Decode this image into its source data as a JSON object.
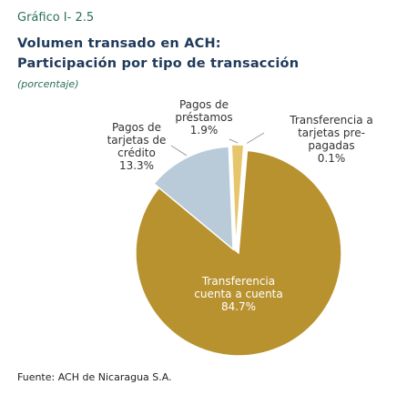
{
  "figure_label": "Gráfico I- 2.5",
  "source": "Fuente: ACH de Nicaragua S.A.",
  "chart_data": {
    "type": "pie",
    "title_line1": "Volumen transado en ACH:",
    "title_line2": "Participación por tipo de transacción",
    "subtitle": "(porcentaje)",
    "slices": [
      {
        "label_lines": [
          "Transferencia",
          "cuenta a cuenta"
        ],
        "value_label": "84.7%",
        "value": 84.7,
        "color": "#b8922f"
      },
      {
        "label_lines": [
          "Pagos de",
          "tarjetas de",
          "crédito"
        ],
        "value_label": "13.3%",
        "value": 13.3,
        "color": "#b9cbd9"
      },
      {
        "label_lines": [
          "Pagos de",
          "préstamos"
        ],
        "value_label": "1.9%",
        "value": 1.9,
        "color": "#e6c56b"
      },
      {
        "label_lines": [
          "Transferencia a",
          "tarjetas pre-",
          "pagadas"
        ],
        "value_label": "0.1%",
        "value": 0.1,
        "color": "#8a6d1f"
      }
    ]
  }
}
